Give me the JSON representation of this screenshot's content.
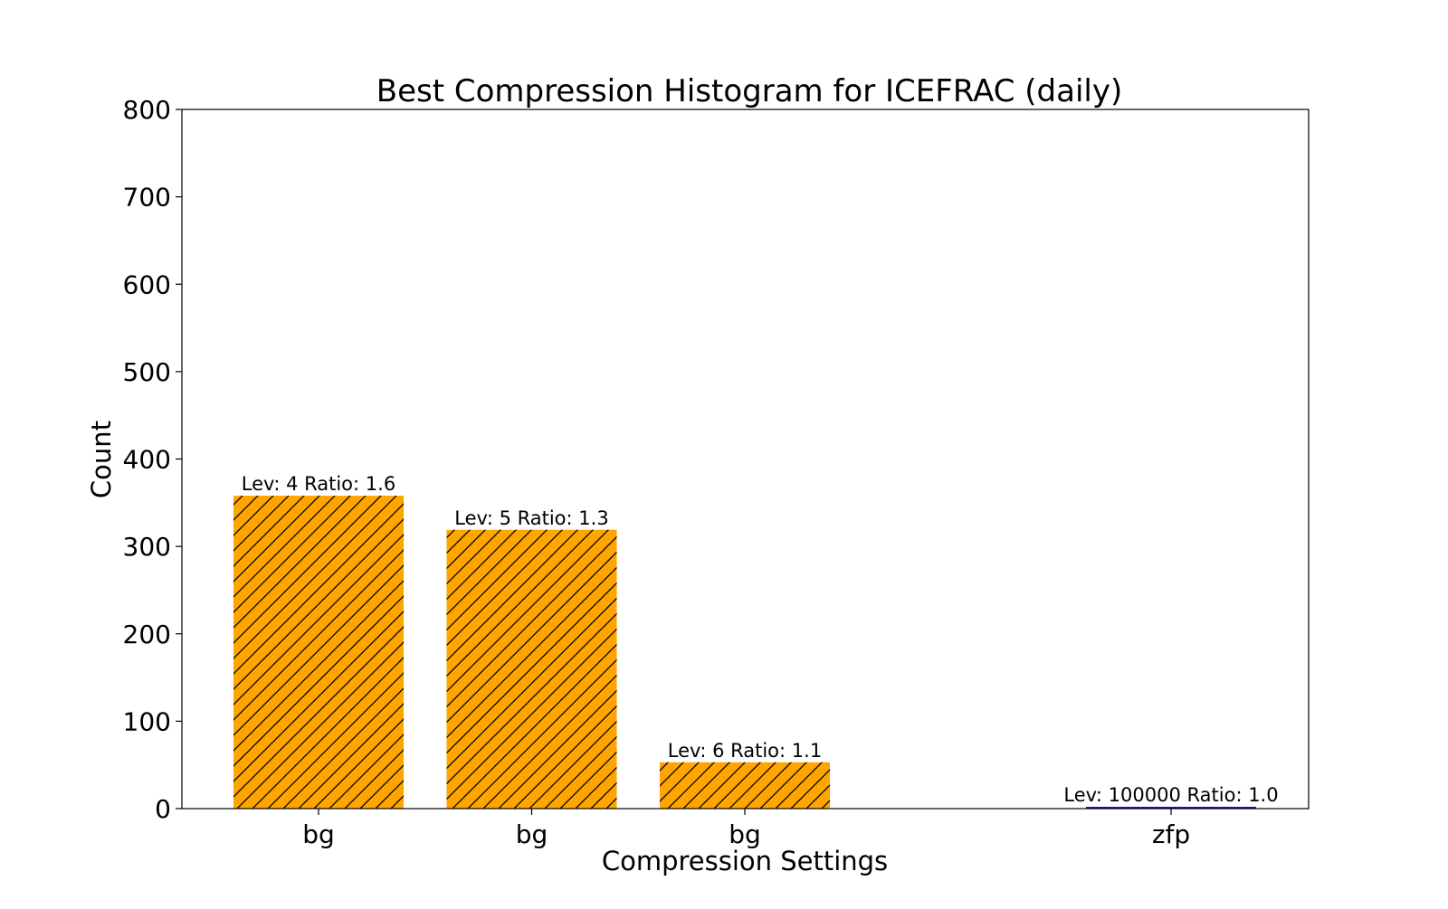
{
  "chart_data": {
    "type": "bar",
    "title": "Best Compression Histogram for ICEFRAC (daily)",
    "xlabel": "Compression Settings",
    "ylabel": "Count",
    "ylim": [
      0,
      800
    ],
    "yticks": [
      0,
      100,
      200,
      300,
      400,
      500,
      600,
      700,
      800
    ],
    "grid": false,
    "legend": "none",
    "bars": [
      {
        "category": "bg",
        "value": 358,
        "label": "Lev: 4 Ratio: 1.6",
        "color": "#FFA500",
        "hatch": "/"
      },
      {
        "category": "bg",
        "value": 319,
        "label": "Lev: 5 Ratio: 1.3",
        "color": "#FFA500",
        "hatch": "/"
      },
      {
        "category": "bg",
        "value": 53,
        "label": "Lev: 6 Ratio: 1.1",
        "color": "#FFA500",
        "hatch": "/"
      },
      {
        "category": "zfp",
        "value": 2,
        "label": "Lev: 100000 Ratio: 1.0",
        "color": "#0000FF",
        "hatch": ""
      }
    ],
    "slots": [
      0,
      1,
      2,
      4
    ]
  }
}
